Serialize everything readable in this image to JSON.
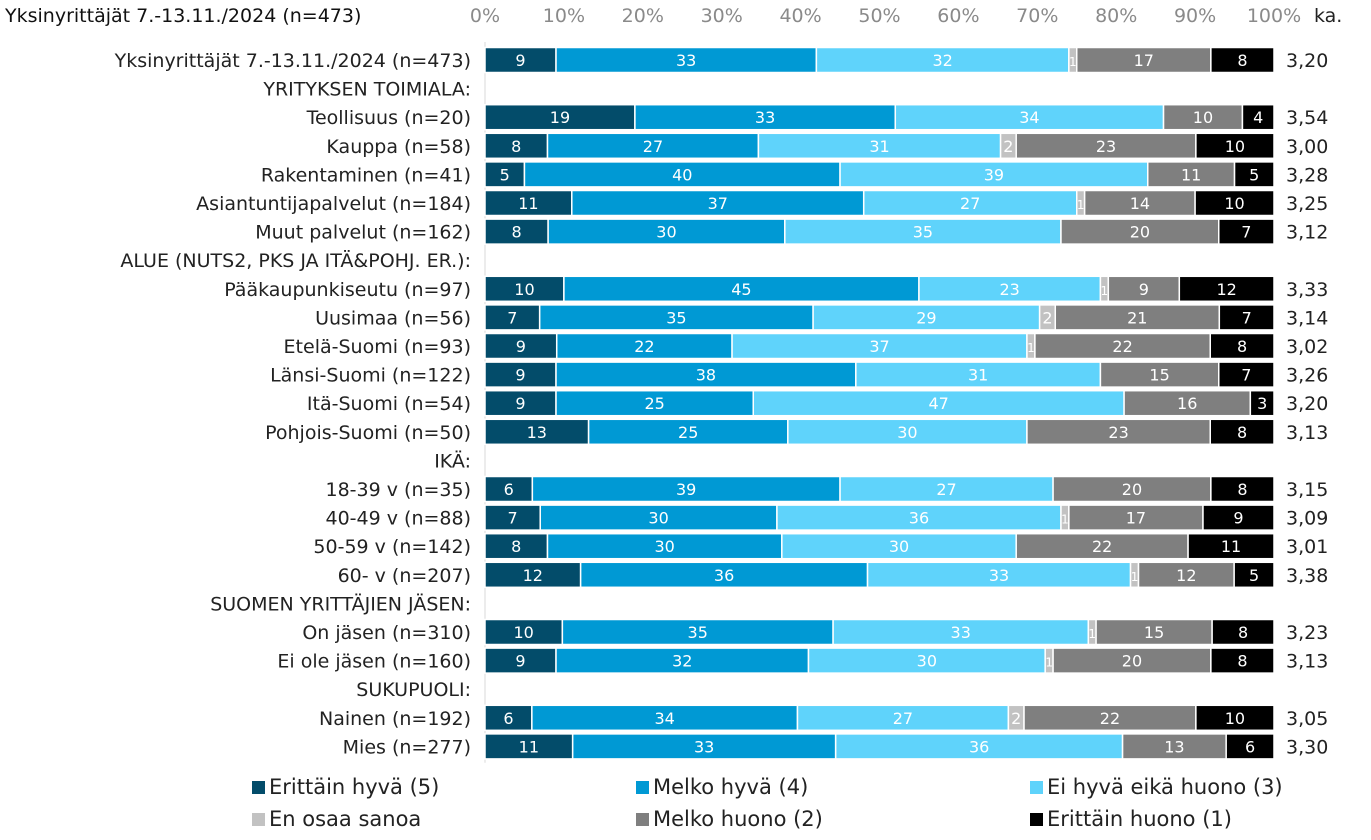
{
  "chart_data": {
    "type": "bar",
    "stacked": true,
    "orientation": "horizontal",
    "title": "Yksinyrittäjät 7.-13.11./2024 (n=473)",
    "avg_header": "ka.",
    "x_ticks": [
      "0%",
      "10%",
      "20%",
      "30%",
      "40%",
      "50%",
      "60%",
      "70%",
      "80%",
      "90%",
      "100%"
    ],
    "xlim": [
      0,
      100
    ],
    "legend_position": "bottom",
    "series": [
      {
        "name": "Erittäin hyvä (5)",
        "color": "#034c6a",
        "text_color": "#ffffff"
      },
      {
        "name": "Melko hyvä (4)",
        "color": "#0099d4",
        "text_color": "#ffffff"
      },
      {
        "name": "Ei hyvä eikä huono (3)",
        "color": "#5fd3fb",
        "text_color": "#ffffff"
      },
      {
        "name": "En osaa sanoa",
        "color": "#c2c2c2",
        "text_color": "#ffffff"
      },
      {
        "name": "Melko huono (2)",
        "color": "#7f7f7f",
        "text_color": "#ffffff"
      },
      {
        "name": "Erittäin huono (1)",
        "color": "#000000",
        "text_color": "#ffffff"
      }
    ],
    "rows": [
      {
        "label": "Yksinyrittäjät 7.-13.11./2024 (n=473)",
        "values": [
          9,
          33,
          32,
          1,
          17,
          8
        ],
        "avg": "3,20"
      },
      {
        "label": "YRITYKSEN TOIMIALA:",
        "header": true
      },
      {
        "label": "Teollisuus (n=20)",
        "values": [
          19,
          33,
          34,
          0,
          10,
          4
        ],
        "avg": "3,54"
      },
      {
        "label": "Kauppa (n=58)",
        "values": [
          8,
          27,
          31,
          2,
          23,
          10
        ],
        "avg": "3,00"
      },
      {
        "label": "Rakentaminen (n=41)",
        "values": [
          5,
          40,
          39,
          0,
          11,
          5
        ],
        "avg": "3,28"
      },
      {
        "label": "Asiantuntijapalvelut (n=184)",
        "values": [
          11,
          37,
          27,
          1,
          14,
          10
        ],
        "avg": "3,25"
      },
      {
        "label": "Muut palvelut (n=162)",
        "values": [
          8,
          30,
          35,
          0,
          20,
          7
        ],
        "avg": "3,12"
      },
      {
        "label": "ALUE (NUTS2, PKS JA ITÄ&POHJ. ER.):",
        "header": true
      },
      {
        "label": "Pääkaupunkiseutu (n=97)",
        "values": [
          10,
          45,
          23,
          1,
          9,
          12
        ],
        "avg": "3,33"
      },
      {
        "label": "Uusimaa (n=56)",
        "values": [
          7,
          35,
          29,
          2,
          21,
          7
        ],
        "avg": "3,14"
      },
      {
        "label": "Etelä-Suomi (n=93)",
        "values": [
          9,
          22,
          37,
          1,
          22,
          8
        ],
        "avg": "3,02"
      },
      {
        "label": "Länsi-Suomi (n=122)",
        "values": [
          9,
          38,
          31,
          0,
          15,
          7
        ],
        "avg": "3,26"
      },
      {
        "label": "Itä-Suomi (n=54)",
        "values": [
          9,
          25,
          47,
          0,
          16,
          3
        ],
        "avg": "3,20"
      },
      {
        "label": "Pohjois-Suomi (n=50)",
        "values": [
          13,
          25,
          30,
          0,
          23,
          8
        ],
        "avg": "3,13"
      },
      {
        "label": "IKÄ:",
        "header": true
      },
      {
        "label": "18-39 v (n=35)",
        "values": [
          6,
          39,
          27,
          0,
          20,
          8
        ],
        "avg": "3,15"
      },
      {
        "label": "40-49 v (n=88)",
        "values": [
          7,
          30,
          36,
          1,
          17,
          9
        ],
        "avg": "3,09"
      },
      {
        "label": "50-59 v (n=142)",
        "values": [
          8,
          30,
          30,
          0,
          22,
          11
        ],
        "avg": "3,01"
      },
      {
        "label": "60- v (n=207)",
        "values": [
          12,
          36,
          33,
          1,
          12,
          5
        ],
        "avg": "3,38"
      },
      {
        "label": "SUOMEN YRITTÄJIEN JÄSEN:",
        "header": true
      },
      {
        "label": "On jäsen (n=310)",
        "values": [
          10,
          35,
          33,
          1,
          15,
          8
        ],
        "avg": "3,23"
      },
      {
        "label": "Ei ole jäsen (n=160)",
        "values": [
          9,
          32,
          30,
          1,
          20,
          8
        ],
        "avg": "3,13"
      },
      {
        "label": "SUKUPUOLI:",
        "header": true
      },
      {
        "label": "Nainen (n=192)",
        "values": [
          6,
          34,
          27,
          2,
          22,
          10
        ],
        "avg": "3,05"
      },
      {
        "label": "Mies (n=277)",
        "values": [
          11,
          33,
          36,
          0,
          13,
          6
        ],
        "avg": "3,30"
      }
    ]
  }
}
